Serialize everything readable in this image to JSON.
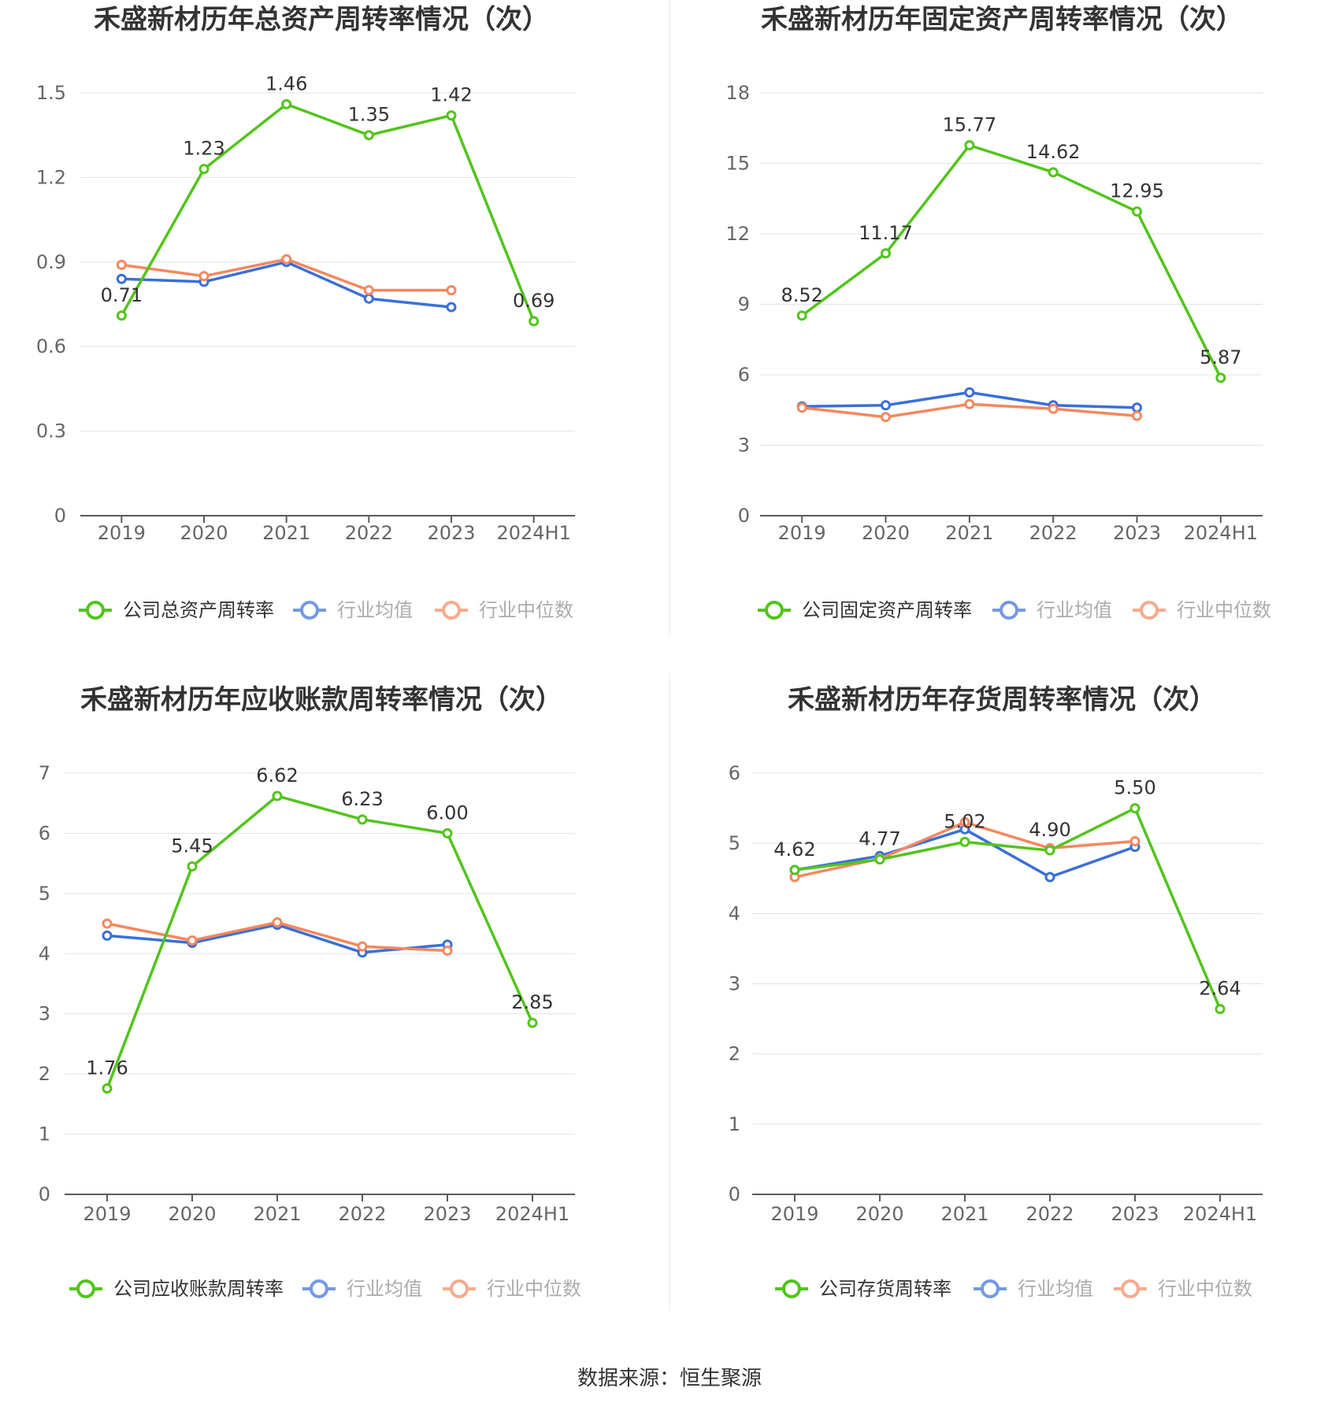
{
  "colors": {
    "company": "#52c41a",
    "industry_avg": "#3a6fd8",
    "industry_median": "#f5875e",
    "grid": "#e0e3ee",
    "axis": "#5a5a5a",
    "tick_text": "#666666",
    "title": "#333333"
  },
  "footer": {
    "source": "数据来源：恒生聚源"
  },
  "chart_data": [
    {
      "type": "line",
      "title": "禾盛新材历年总资产周转率情况（次）",
      "categories": [
        "2019",
        "2020",
        "2021",
        "2022",
        "2023",
        "2024H1"
      ],
      "ylim": [
        0,
        1.5
      ],
      "yticks": [
        0,
        0.3,
        0.6,
        0.9,
        1.2,
        1.5
      ],
      "ytick_labels": [
        "0",
        "0.3",
        "0.6",
        "0.9",
        "1.2",
        "1.5"
      ],
      "series": [
        {
          "name": "公司总资产周转率",
          "key": "company",
          "values": [
            0.71,
            1.23,
            1.46,
            1.35,
            1.42,
            0.69
          ],
          "labels": [
            "0.71",
            "1.23",
            "1.46",
            "1.35",
            "1.42",
            "0.69"
          ]
        },
        {
          "name": "行业均值",
          "key": "industry_avg",
          "values": [
            0.84,
            0.83,
            0.9,
            0.77,
            0.74,
            null
          ]
        },
        {
          "name": "行业中位数",
          "key": "industry_median",
          "values": [
            0.89,
            0.85,
            0.91,
            0.8,
            0.8,
            null
          ]
        }
      ]
    },
    {
      "type": "line",
      "title": "禾盛新材历年固定资产周转率情况（次）",
      "categories": [
        "2019",
        "2020",
        "2021",
        "2022",
        "2023",
        "2024H1"
      ],
      "ylim": [
        0,
        18
      ],
      "yticks": [
        0,
        3,
        6,
        9,
        12,
        15,
        18
      ],
      "ytick_labels": [
        "0",
        "3",
        "6",
        "9",
        "12",
        "15",
        "18"
      ],
      "series": [
        {
          "name": "公司固定资产周转率",
          "key": "company",
          "values": [
            8.52,
            11.17,
            15.77,
            14.62,
            12.95,
            5.87
          ],
          "labels": [
            "8.52",
            "11.17",
            "15.77",
            "14.62",
            "12.95",
            "5.87"
          ]
        },
        {
          "name": "行业均值",
          "key": "industry_avg",
          "values": [
            4.65,
            4.7,
            5.25,
            4.7,
            4.6,
            null
          ]
        },
        {
          "name": "行业中位数",
          "key": "industry_median",
          "values": [
            4.6,
            4.2,
            4.75,
            4.55,
            4.25,
            null
          ]
        }
      ]
    },
    {
      "type": "line",
      "title": "禾盛新材历年应收账款周转率情况（次）",
      "categories": [
        "2019",
        "2020",
        "2021",
        "2022",
        "2023",
        "2024H1"
      ],
      "ylim": [
        0,
        7
      ],
      "yticks": [
        0,
        1,
        2,
        3,
        4,
        5,
        6,
        7
      ],
      "ytick_labels": [
        "0",
        "1",
        "2",
        "3",
        "4",
        "5",
        "6",
        "7"
      ],
      "series": [
        {
          "name": "公司应收账款周转率",
          "key": "company",
          "values": [
            1.76,
            5.45,
            6.62,
            6.23,
            6.0,
            2.85
          ],
          "labels": [
            "1.76",
            "5.45",
            "6.62",
            "6.23",
            "6.00",
            "2.85"
          ]
        },
        {
          "name": "行业均值",
          "key": "industry_avg",
          "values": [
            4.3,
            4.18,
            4.48,
            4.02,
            4.15,
            null
          ]
        },
        {
          "name": "行业中位数",
          "key": "industry_median",
          "values": [
            4.5,
            4.22,
            4.52,
            4.12,
            4.05,
            null
          ]
        }
      ]
    },
    {
      "type": "line",
      "title": "禾盛新材历年存货周转率情况（次）",
      "categories": [
        "2019",
        "2020",
        "2021",
        "2022",
        "2023",
        "2024H1"
      ],
      "ylim": [
        0,
        6
      ],
      "yticks": [
        0,
        1,
        2,
        3,
        4,
        5,
        6
      ],
      "ytick_labels": [
        "0",
        "1",
        "2",
        "3",
        "4",
        "5",
        "6"
      ],
      "series": [
        {
          "name": "公司存货周转率",
          "key": "company",
          "values": [
            4.62,
            4.77,
            5.02,
            4.9,
            5.5,
            2.64
          ],
          "labels": [
            "4.62",
            "4.77",
            "5.02",
            "4.90",
            "5.50",
            "2.64"
          ]
        },
        {
          "name": "行业均值",
          "key": "industry_avg",
          "values": [
            4.62,
            4.82,
            5.2,
            4.52,
            4.95,
            null
          ]
        },
        {
          "name": "行业中位数",
          "key": "industry_median",
          "values": [
            4.52,
            4.78,
            5.3,
            4.93,
            5.03,
            null
          ]
        }
      ]
    }
  ]
}
